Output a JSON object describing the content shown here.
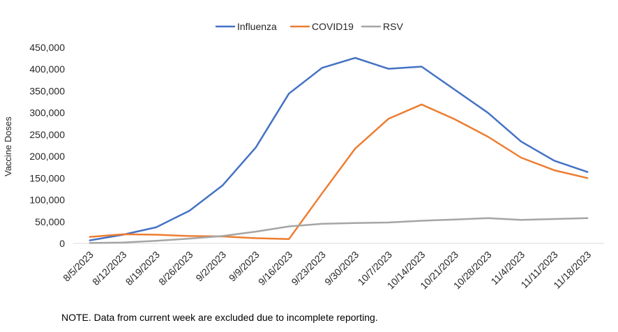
{
  "chart_data": {
    "type": "line",
    "title": "",
    "xlabel": "",
    "ylabel": "Vaccine Doses",
    "ylim": [
      0,
      450000
    ],
    "ytick_labels": [
      "0",
      "50,000",
      "100,000",
      "150,000",
      "200,000",
      "250,000",
      "300,000",
      "350,000",
      "400,000",
      "450,000"
    ],
    "grid": false,
    "legend_position": "top-center",
    "categories": [
      "8/5/2023",
      "8/12/2023",
      "8/19/2023",
      "8/26/2023",
      "9/2/2023",
      "9/9/2023",
      "9/16/2023",
      "9/23/2023",
      "9/30/2023",
      "10/7/2023",
      "10/14/2023",
      "10/21/2023",
      "10/28/2023",
      "11/4/2023",
      "11/11/2023",
      "11/18/2023"
    ],
    "series": [
      {
        "name": "Influenza",
        "color": "#4472C4",
        "values": [
          7000,
          20000,
          37000,
          75000,
          133000,
          220000,
          344000,
          403000,
          426000,
          401000,
          406000,
          353000,
          300000,
          234000,
          190000,
          164000
        ]
      },
      {
        "name": "COVID19",
        "color": "#ED7D31",
        "values": [
          15000,
          21000,
          20000,
          17000,
          16000,
          12000,
          10000,
          115000,
          218000,
          286000,
          319000,
          285000,
          245000,
          197000,
          168000,
          150000
        ]
      },
      {
        "name": "RSV",
        "color": "#A5A5A5",
        "values": [
          1000,
          2000,
          6000,
          11000,
          17000,
          27000,
          39000,
          45000,
          47000,
          48000,
          52000,
          55000,
          58000,
          54000,
          56000,
          58000
        ]
      }
    ]
  },
  "note": "NOTE. Data from current week are excluded due to incomplete reporting."
}
